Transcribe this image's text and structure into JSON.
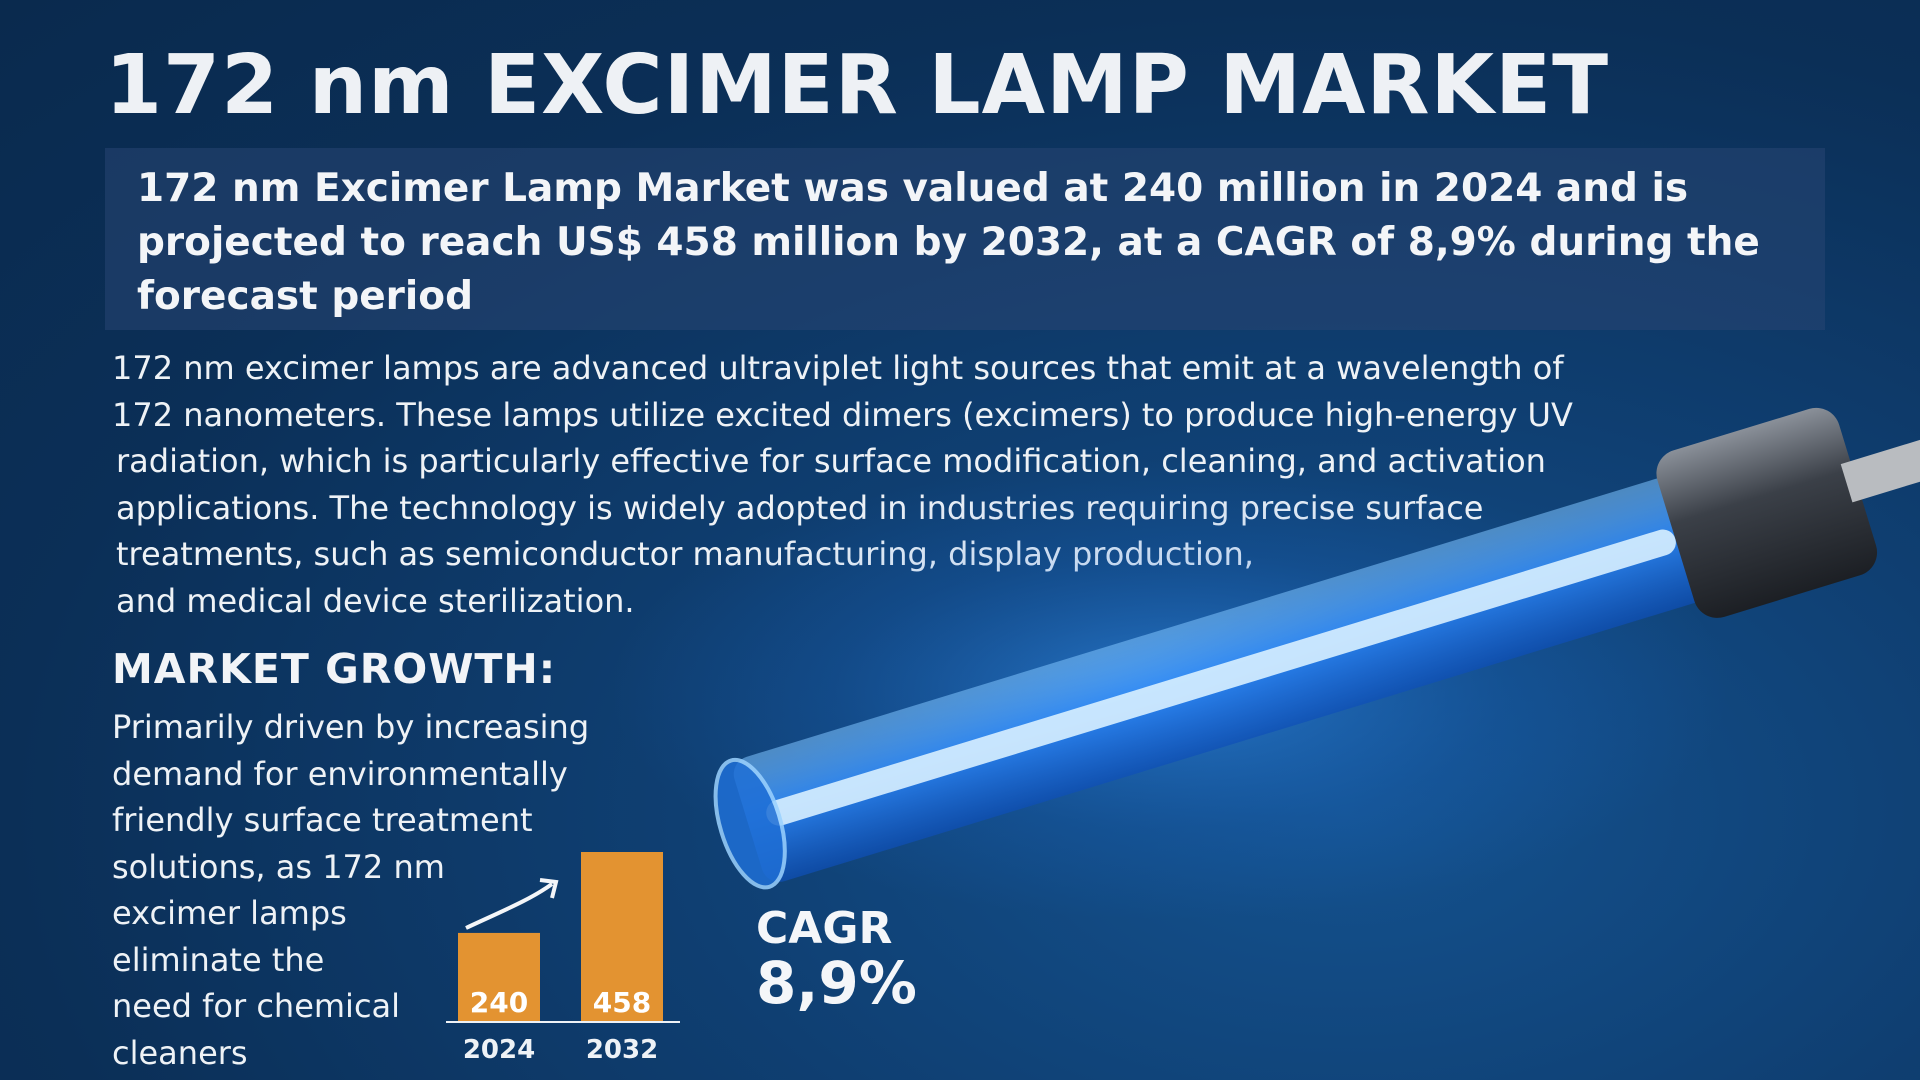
{
  "title": "172 nm EXCIMER LAMP MARKET",
  "summary": "172 nm Excimer Lamp Market was valued at 240 million in 2024 and is projected to reach US$ 458 million by 2032, at a CAGR of 8,9% during the forecast period",
  "description": [
    "172 nm excimer lamps are advanced ultraviplet light sources that emit at a wavelength of",
    "172 nanometers. These lamps utilize excited dimers (excimers) to produce high-energy UV",
    "radiation, which is particularly effective for surface modification, cleaning, and activation",
    "applications. The technology is widely adopted in industries requiring precise surface",
    "treatments, such as semiconductor manufacturing, display production,",
    "and medical device sterilization."
  ],
  "growth": {
    "heading": "MARKET GROWTH:",
    "lines": [
      "Primarily driven by increasing",
      "demand for environmentally",
      "friendly surface treatment",
      "solutions, as 172 nm",
      "excimer lamps",
      "eliminate the",
      "need for chemical",
      "cleaners"
    ]
  },
  "cagr": {
    "label": "CAGR",
    "value": "8,9%"
  },
  "colors": {
    "bar": "#e39331",
    "background": "#0b2f57",
    "lamp_glow": "#2f8cff"
  },
  "chart_data": {
    "type": "bar",
    "categories": [
      "2024",
      "2032"
    ],
    "values": [
      240,
      458
    ],
    "data_labels": [
      "240",
      "458"
    ],
    "title": "",
    "xlabel": "",
    "ylabel": "",
    "ylim": [
      0,
      458
    ],
    "grid": false,
    "trend_arrow": true
  }
}
